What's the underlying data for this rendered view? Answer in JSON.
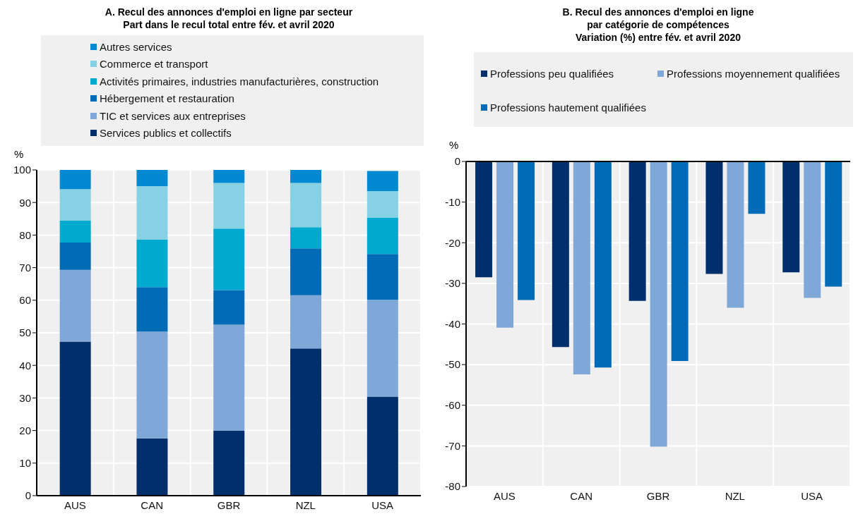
{
  "chart_data": [
    {
      "type": "bar",
      "title": "A. Recul des annonces d'emploi en ligne par secteur\nPart dans le recul total entre fév. et avril 2020",
      "ylabel": "%",
      "categories": [
        "AUS",
        "CAN",
        "GBR",
        "NZL",
        "USA"
      ],
      "stacked": true,
      "ylim": [
        0,
        100
      ],
      "yticks": [
        0,
        10,
        20,
        30,
        40,
        50,
        60,
        70,
        80,
        90,
        100
      ],
      "grid": true,
      "legend": "top",
      "series": [
        {
          "name": "Services publics et collectifs",
          "color": "#002f6c",
          "values": [
            47.3,
            17.6,
            19.9,
            45.2,
            30.4
          ]
        },
        {
          "name": "TIC et services aux entreprises",
          "color": "#7fa8d9",
          "values": [
            22.0,
            32.8,
            32.6,
            16.3,
            29.7
          ]
        },
        {
          "name": "Hébergement et restauration",
          "color": "#006bb6",
          "values": [
            8.4,
            13.6,
            10.6,
            14.4,
            14.1
          ]
        },
        {
          "name": "Activités primaires, industries manufacturières, construction",
          "color": "#00a9ce",
          "values": [
            6.7,
            14.7,
            18.9,
            6.5,
            11.2
          ]
        },
        {
          "name": "Commerce et transport",
          "color": "#86d1e4",
          "values": [
            9.7,
            16.3,
            14.0,
            13.6,
            8.1
          ]
        },
        {
          "name": "Autres services",
          "color": "#0089d0",
          "values": [
            5.9,
            5.0,
            4.0,
            4.0,
            6.2
          ]
        }
      ]
    },
    {
      "type": "bar",
      "title": "B. Recul des annonces d'emploi en ligne\npar catégorie de compétences\nVariation (%) entre fév. et avril 2020",
      "ylabel": "%",
      "categories": [
        "AUS",
        "CAN",
        "GBR",
        "NZL",
        "USA"
      ],
      "ylim": [
        -80,
        0
      ],
      "yticks": [
        -80,
        -70,
        -60,
        -50,
        -40,
        -30,
        -20,
        -10,
        0
      ],
      "grid": true,
      "legend": "top",
      "series": [
        {
          "name": "Professions peu qualifiées",
          "color": "#002f6c",
          "values": [
            -28.5,
            -45.7,
            -34.3,
            -27.7,
            -27.3
          ]
        },
        {
          "name": "Professions moyennement qualifiées",
          "color": "#7fa8d9",
          "values": [
            -40.9,
            -52.4,
            -70.2,
            -36.0,
            -33.6
          ]
        },
        {
          "name": "Professions hautement qualifiées",
          "color": "#006bb6",
          "values": [
            -34.1,
            -50.7,
            -49.1,
            -12.9,
            -30.8
          ]
        }
      ]
    }
  ]
}
